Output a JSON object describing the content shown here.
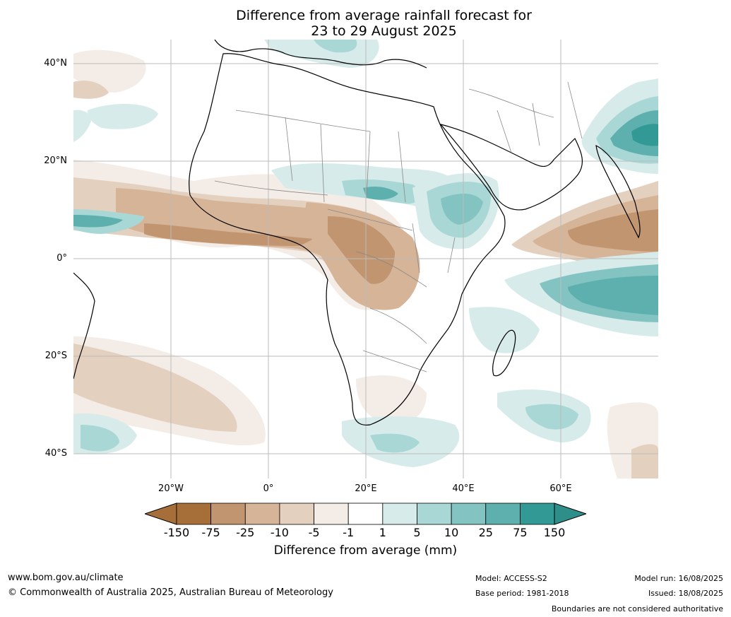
{
  "title": {
    "line1": "Difference from average rainfall forecast for",
    "line2": "23 to 29 August 2025"
  },
  "map": {
    "region": "Africa, Arabia and western Indian Ocean",
    "lat_labels": [
      "40°N",
      "20°N",
      "0°",
      "20°S",
      "40°S"
    ],
    "lon_labels": [
      "20°W",
      "0°",
      "20°E",
      "40°E",
      "60°E"
    ],
    "extent": {
      "lon_min": -40,
      "lon_max": 80,
      "lat_min": -45,
      "lat_max": 45
    },
    "colors": {
      "-150": "#a66f3a",
      "-75": "#c19570",
      "-25": "#d5b497",
      "-10": "#e4d0bf",
      "-5": "#f4ece6",
      "neutral": "#ffffff",
      "5": "#d6ebea",
      "10": "#a9d7d5",
      "25": "#83c4c2",
      "75": "#5eb0ae",
      "150": "#339995"
    }
  },
  "colorbar": {
    "ticks": [
      "-150",
      "-75",
      "-25",
      "-10",
      "-5",
      "-1",
      "1",
      "5",
      "10",
      "25",
      "75",
      "150"
    ],
    "colors": [
      "#a66f3a",
      "#c19570",
      "#d5b497",
      "#e4d0bf",
      "#f4ece6",
      "#ffffff",
      "#d6ebea",
      "#a9d7d5",
      "#83c4c2",
      "#5eb0ae",
      "#339995"
    ],
    "extend_low_color": "#a66f3a",
    "extend_high_color": "#2e8e8a",
    "label": "Difference from average (mm)"
  },
  "footer": {
    "website": "www.bom.gov.au/climate",
    "copyright": "© Commonwealth of Australia 2025, Australian Bureau of Meteorology",
    "model": "Model: ACCESS-S2",
    "base_period": "Base period: 1981-2018",
    "model_run": "Model run: 16/08/2025",
    "issued": "Issued: 18/08/2025",
    "disclaimer": "Boundaries are not considered authoritative"
  }
}
